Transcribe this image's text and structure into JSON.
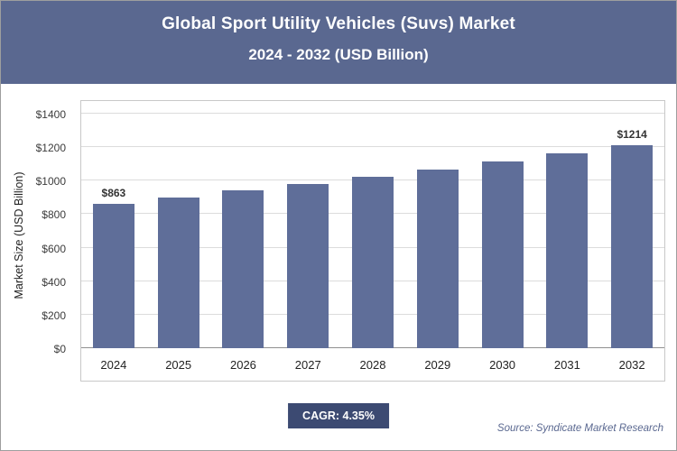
{
  "header": {
    "title_line1": "Global Sport Utility Vehicles (Suvs) Market",
    "title_line2": "2024 - 2032 (USD Billion)"
  },
  "chart_data": {
    "type": "bar",
    "title": "Global Sport Utility Vehicles (Suvs) Market 2024 - 2032 (USD Billion)",
    "categories": [
      "2024",
      "2025",
      "2026",
      "2027",
      "2028",
      "2029",
      "2030",
      "2031",
      "2032"
    ],
    "values": [
      863,
      901,
      940,
      981,
      1023,
      1068,
      1114,
      1163,
      1214
    ],
    "data_labels": [
      "$863",
      null,
      null,
      null,
      null,
      null,
      null,
      null,
      "$1214"
    ],
    "xlabel": "",
    "ylabel": "Market Size (USD Billion)",
    "ylim": [
      0,
      1400
    ],
    "yticks": [
      {
        "label": "$0",
        "value": 0
      },
      {
        "label": "$200",
        "value": 200
      },
      {
        "label": "$400",
        "value": 400
      },
      {
        "label": "$600",
        "value": 600
      },
      {
        "label": "$800",
        "value": 800
      },
      {
        "label": "$1000",
        "value": 1000
      },
      {
        "label": "$1200",
        "value": 1200
      },
      {
        "label": "$1400",
        "value": 1400
      }
    ],
    "grid": "horizontal",
    "legend": "none"
  },
  "footer": {
    "cagr_label": "CAGR: 4.35%",
    "source": "Source: Syndicate Market Research"
  },
  "colors": {
    "header_bg": "#5a6890",
    "bar": "#5f6e99",
    "badge_bg": "#3c4a72",
    "gridline": "#dcdcdc",
    "axis_line": "#8f8f8f"
  }
}
